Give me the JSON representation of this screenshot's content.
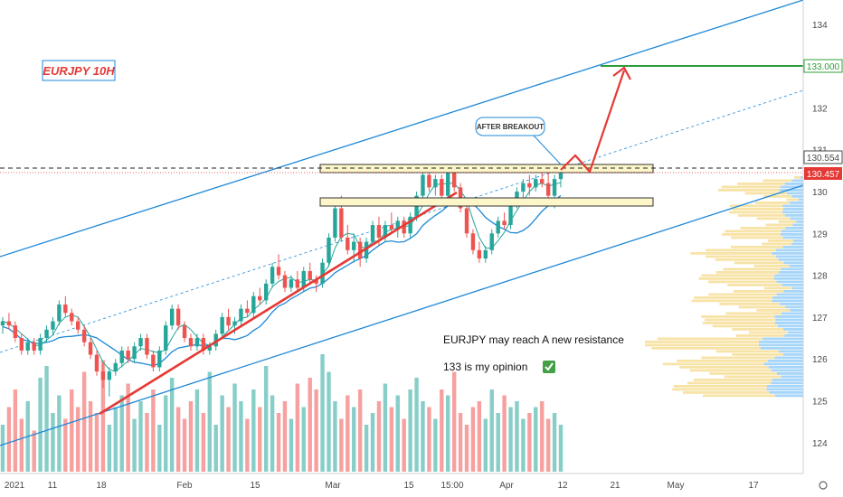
{
  "chart_data": {
    "type": "candlestick",
    "symbol_label": "EURJPY 10H",
    "y_ticks": [
      "124",
      "125",
      "126",
      "127",
      "128",
      "129",
      "130",
      "131",
      "132",
      "133",
      "134"
    ],
    "x_ticks": [
      "2021",
      "11",
      "18",
      "Feb",
      "15",
      "Mar",
      "15",
      "15:00",
      "Apr",
      "12",
      "21",
      "May",
      "17"
    ],
    "ylim": [
      123.4,
      134.6
    ],
    "price_tags": [
      {
        "label": "133.000",
        "color": "#2e9d3a"
      },
      {
        "label": "130.554",
        "color": "#4a4a4a"
      },
      {
        "label": "130.457",
        "color": "#e53935"
      }
    ],
    "levels": {
      "target": 133.0,
      "current_high": 130.554,
      "current": 130.457
    },
    "annotations": {
      "callout": "AFTER BREAKOUT",
      "note1": "EURJPY may reach A new resistance",
      "note2": "133 is my opinion",
      "check": "✅"
    },
    "resistance_zone": [
      130.45,
      130.65
    ],
    "support_zone": [
      129.65,
      129.85
    ],
    "candles": [
      [
        126.8,
        127.0,
        126.6,
        126.9
      ],
      [
        126.9,
        127.1,
        126.7,
        126.8
      ],
      [
        126.8,
        126.9,
        126.4,
        126.5
      ],
      [
        126.5,
        126.6,
        126.1,
        126.2
      ],
      [
        126.2,
        126.5,
        126.1,
        126.4
      ],
      [
        126.4,
        126.5,
        126.1,
        126.2
      ],
      [
        126.2,
        126.6,
        126.1,
        126.5
      ],
      [
        126.5,
        126.8,
        126.4,
        126.7
      ],
      [
        126.7,
        127.0,
        126.6,
        126.9
      ],
      [
        126.9,
        127.4,
        126.8,
        127.3
      ],
      [
        127.3,
        127.5,
        127.0,
        127.1
      ],
      [
        127.1,
        127.2,
        126.8,
        126.9
      ],
      [
        126.9,
        127.0,
        126.6,
        126.7
      ],
      [
        126.7,
        126.8,
        126.3,
        126.4
      ],
      [
        126.4,
        126.5,
        126.0,
        126.1
      ],
      [
        126.1,
        126.2,
        125.6,
        125.7
      ],
      [
        125.7,
        125.9,
        125.3,
        125.5
      ],
      [
        125.5,
        125.8,
        125.1,
        125.7
      ],
      [
        125.7,
        126.0,
        125.6,
        125.9
      ],
      [
        125.9,
        126.3,
        125.8,
        126.2
      ],
      [
        126.2,
        126.3,
        125.9,
        126.0
      ],
      [
        126.0,
        126.4,
        125.9,
        126.3
      ],
      [
        126.3,
        126.6,
        126.2,
        126.5
      ],
      [
        126.5,
        126.6,
        126.0,
        126.1
      ],
      [
        126.1,
        126.2,
        125.7,
        125.8
      ],
      [
        125.8,
        126.3,
        125.7,
        126.2
      ],
      [
        126.2,
        126.9,
        126.1,
        126.8
      ],
      [
        126.8,
        127.3,
        126.7,
        127.2
      ],
      [
        127.2,
        127.3,
        126.7,
        126.8
      ],
      [
        126.8,
        126.9,
        126.4,
        126.5
      ],
      [
        126.5,
        126.6,
        126.2,
        126.3
      ],
      [
        126.3,
        126.6,
        126.2,
        126.5
      ],
      [
        126.5,
        126.6,
        126.1,
        126.2
      ],
      [
        126.2,
        126.4,
        126.1,
        126.3
      ],
      [
        126.3,
        126.7,
        126.2,
        126.6
      ],
      [
        126.6,
        127.1,
        126.5,
        127.0
      ],
      [
        127.0,
        127.2,
        126.7,
        126.8
      ],
      [
        126.8,
        127.0,
        126.6,
        126.9
      ],
      [
        126.9,
        127.3,
        126.8,
        127.2
      ],
      [
        127.2,
        127.4,
        127.0,
        127.1
      ],
      [
        127.1,
        127.6,
        127.0,
        127.5
      ],
      [
        127.5,
        127.7,
        127.3,
        127.4
      ],
      [
        127.4,
        127.9,
        127.3,
        127.8
      ],
      [
        127.8,
        128.3,
        127.7,
        128.2
      ],
      [
        128.2,
        128.5,
        127.9,
        128.0
      ],
      [
        128.0,
        128.1,
        127.6,
        127.7
      ],
      [
        127.7,
        128.0,
        127.6,
        127.9
      ],
      [
        127.9,
        128.1,
        127.6,
        127.7
      ],
      [
        127.7,
        128.2,
        127.6,
        128.1
      ],
      [
        128.1,
        128.3,
        127.8,
        127.9
      ],
      [
        127.9,
        128.0,
        127.6,
        127.8
      ],
      [
        127.8,
        128.4,
        127.7,
        128.3
      ],
      [
        128.3,
        129.0,
        128.2,
        128.9
      ],
      [
        128.9,
        129.7,
        128.8,
        129.6
      ],
      [
        129.6,
        129.9,
        128.8,
        128.9
      ],
      [
        128.9,
        129.2,
        128.5,
        128.6
      ],
      [
        128.6,
        129.0,
        128.3,
        128.8
      ],
      [
        128.8,
        128.9,
        128.2,
        128.4
      ],
      [
        128.4,
        128.9,
        128.3,
        128.8
      ],
      [
        128.8,
        129.3,
        128.7,
        129.2
      ],
      [
        129.2,
        129.4,
        128.7,
        128.9
      ],
      [
        128.9,
        129.3,
        128.8,
        129.2
      ],
      [
        129.2,
        129.5,
        129.0,
        129.1
      ],
      [
        129.1,
        129.4,
        128.9,
        129.3
      ],
      [
        129.3,
        129.4,
        128.9,
        129.0
      ],
      [
        129.0,
        129.5,
        128.9,
        129.4
      ],
      [
        129.4,
        130.0,
        129.3,
        129.9
      ],
      [
        129.9,
        130.5,
        129.8,
        130.4
      ],
      [
        130.4,
        130.5,
        130.0,
        130.1
      ],
      [
        130.1,
        130.4,
        129.9,
        130.3
      ],
      [
        130.3,
        130.4,
        129.8,
        129.9
      ],
      [
        129.9,
        130.6,
        129.8,
        130.5
      ],
      [
        130.5,
        130.6,
        130.0,
        130.1
      ],
      [
        130.1,
        130.2,
        129.5,
        129.6
      ],
      [
        129.6,
        129.7,
        128.9,
        129.0
      ],
      [
        129.0,
        129.1,
        128.5,
        128.6
      ],
      [
        128.6,
        128.8,
        128.3,
        128.4
      ],
      [
        128.4,
        128.7,
        128.3,
        128.6
      ],
      [
        128.6,
        129.1,
        128.5,
        129.0
      ],
      [
        129.0,
        129.4,
        128.9,
        129.3
      ],
      [
        129.3,
        129.5,
        129.1,
        129.2
      ],
      [
        129.2,
        129.8,
        129.1,
        129.7
      ],
      [
        129.7,
        130.1,
        129.6,
        130.0
      ],
      [
        130.0,
        130.3,
        129.8,
        130.2
      ],
      [
        130.2,
        130.4,
        129.9,
        130.1
      ],
      [
        130.1,
        130.4,
        130.0,
        130.3
      ],
      [
        130.3,
        130.6,
        130.1,
        130.2
      ],
      [
        130.2,
        130.5,
        129.8,
        129.9
      ],
      [
        129.9,
        130.4,
        129.6,
        130.3
      ],
      [
        130.3,
        130.5,
        130.1,
        130.45
      ]
    ],
    "volumes": [
      40,
      55,
      70,
      45,
      60,
      35,
      80,
      90,
      50,
      65,
      45,
      70,
      55,
      85,
      60,
      50,
      95,
      40,
      55,
      65,
      75,
      45,
      60,
      50,
      70,
      40,
      65,
      80,
      55,
      45,
      60,
      70,
      50,
      85,
      40,
      65,
      55,
      75,
      60,
      45,
      70,
      55,
      90,
      65,
      50,
      60,
      45,
      75,
      55,
      80,
      70,
      100,
      85,
      60,
      45,
      65,
      55,
      70,
      40,
      50,
      60,
      75,
      55,
      65,
      45,
      70,
      80,
      60,
      55,
      45,
      70,
      65,
      85,
      50,
      40,
      55,
      60,
      45,
      70,
      50,
      65,
      55,
      60,
      45,
      50,
      55,
      60,
      45,
      50,
      40
    ],
    "volume_colors_up": "#26a69a",
    "volume_colors_down": "#ef5350"
  }
}
